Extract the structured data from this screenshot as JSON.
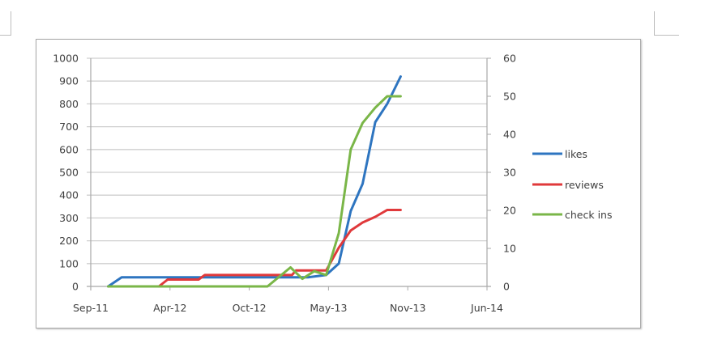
{
  "document": {
    "page_marks": [
      "top-left-corner",
      "top-right-corner"
    ]
  },
  "chart_data": {
    "type": "line",
    "title": "",
    "xlabel": "",
    "ylabel": "",
    "y2label": "",
    "grid": true,
    "legend_position": "right",
    "x_ticks": [
      "Sep-11",
      "Apr-12",
      "Oct-12",
      "May-13",
      "Nov-13",
      "Jun-14"
    ],
    "x_unit_note": "x values are positions in tick units (0 = Sep-11, 5 = Jun-14)",
    "ylim": [
      0,
      1000
    ],
    "y_ticks": [
      0,
      100,
      200,
      300,
      400,
      500,
      600,
      700,
      800,
      900,
      1000
    ],
    "y2lim": [
      0,
      60
    ],
    "y2_ticks": [
      0,
      10,
      20,
      30,
      40,
      50,
      60
    ],
    "series": [
      {
        "name": "likes",
        "axis": "left",
        "color": "#2e75c0",
        "x": [
          0.22,
          0.39,
          2.74,
          2.97,
          3.13,
          3.28,
          3.43,
          3.59,
          3.74,
          3.91
        ],
        "values": [
          0,
          40,
          40,
          50,
          100,
          330,
          450,
          720,
          800,
          920
        ]
      },
      {
        "name": "reviews",
        "axis": "left",
        "color": "#e0393b",
        "x": [
          0.86,
          0.97,
          1.36,
          1.44,
          2.54,
          2.59,
          2.97,
          3.13,
          3.28,
          3.43,
          3.59,
          3.74,
          3.91
        ],
        "values": [
          0,
          30,
          30,
          50,
          50,
          70,
          70,
          170,
          245,
          280,
          305,
          335,
          335
        ]
      },
      {
        "name": "check ins",
        "axis": "right",
        "color": "#7ab648",
        "x": [
          0.22,
          2.23,
          2.52,
          2.67,
          2.82,
          2.97,
          3.13,
          3.28,
          3.43,
          3.59,
          3.74,
          3.91
        ],
        "values": [
          0,
          0,
          5,
          2,
          4,
          3,
          14,
          36,
          43,
          47,
          50,
          50
        ]
      }
    ]
  },
  "legend": {
    "items": [
      {
        "label": "likes",
        "color": "#2e75c0"
      },
      {
        "label": "reviews",
        "color": "#e0393b"
      },
      {
        "label": "check ins",
        "color": "#7ab648"
      }
    ]
  }
}
